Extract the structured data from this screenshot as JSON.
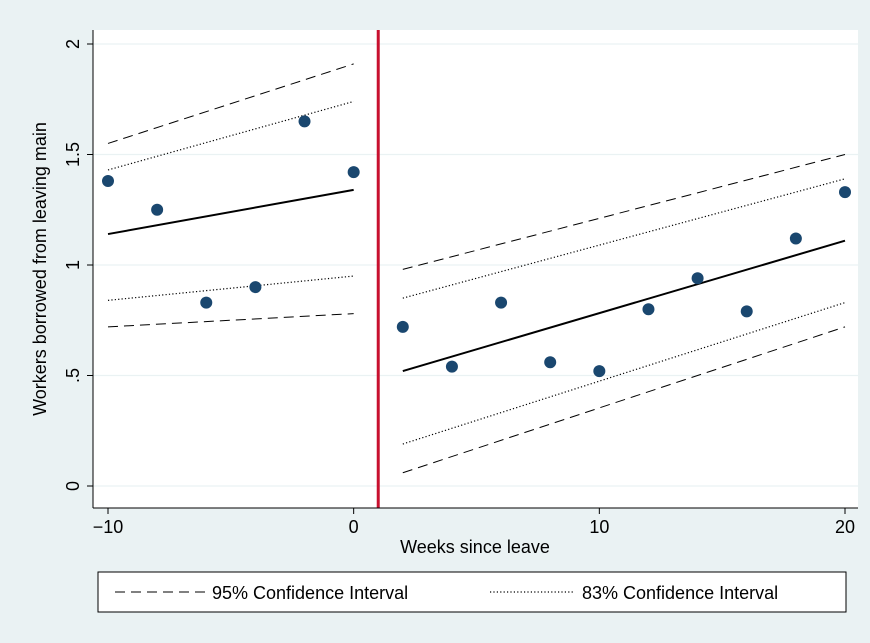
{
  "chart_data": {
    "type": "scatter",
    "xlabel": "Weeks since leave",
    "ylabel": "Workers borrowed from leaving main",
    "xlim": [
      -10,
      20
    ],
    "ylim": [
      0,
      2
    ],
    "x_ticks": [
      {
        "value": -10,
        "label": "−10"
      },
      {
        "value": 0,
        "label": "0"
      },
      {
        "value": 10,
        "label": "10"
      },
      {
        "value": 20,
        "label": "20"
      }
    ],
    "y_ticks": [
      {
        "value": 0,
        "label": "0"
      },
      {
        "value": 0.5,
        "label": ".5"
      },
      {
        "value": 1,
        "label": "1"
      },
      {
        "value": 1.5,
        "label": "1.5"
      },
      {
        "value": 2,
        "label": "2"
      }
    ],
    "grid": true,
    "vertical_line": {
      "x": 1,
      "color": "#c8102e"
    },
    "points": [
      {
        "x": -10,
        "y": 1.38
      },
      {
        "x": -8,
        "y": 1.25
      },
      {
        "x": -6,
        "y": 0.83
      },
      {
        "x": -4,
        "y": 0.9
      },
      {
        "x": -2,
        "y": 1.65
      },
      {
        "x": 0,
        "y": 1.42
      },
      {
        "x": 2,
        "y": 0.72
      },
      {
        "x": 4,
        "y": 0.54
      },
      {
        "x": 6,
        "y": 0.83
      },
      {
        "x": 8,
        "y": 0.56
      },
      {
        "x": 10,
        "y": 0.52
      },
      {
        "x": 12,
        "y": 0.8
      },
      {
        "x": 14,
        "y": 0.94
      },
      {
        "x": 16,
        "y": 0.79
      },
      {
        "x": 18,
        "y": 1.12
      },
      {
        "x": 20,
        "y": 1.33
      }
    ],
    "segments": [
      {
        "fit": [
          [
            -10,
            1.14
          ],
          [
            0,
            1.34
          ]
        ],
        "ci95_upper": [
          [
            -10,
            1.55
          ],
          [
            0,
            1.91
          ]
        ],
        "ci95_lower": [
          [
            -10,
            0.72
          ],
          [
            0,
            0.78
          ]
        ],
        "ci83_upper": [
          [
            -10,
            1.43
          ],
          [
            0,
            1.74
          ]
        ],
        "ci83_lower": [
          [
            -10,
            0.84
          ],
          [
            0,
            0.95
          ]
        ]
      },
      {
        "fit": [
          [
            2,
            0.52
          ],
          [
            20,
            1.11
          ]
        ],
        "ci95_upper": [
          [
            2,
            0.98
          ],
          [
            20,
            1.5
          ]
        ],
        "ci95_lower": [
          [
            2,
            0.06
          ],
          [
            20,
            0.72
          ]
        ],
        "ci83_upper": [
          [
            2,
            0.85
          ],
          [
            20,
            1.39
          ]
        ],
        "ci83_lower": [
          [
            2,
            0.19
          ],
          [
            20,
            0.83
          ]
        ]
      }
    ],
    "legend": {
      "position": "bottom",
      "entries": [
        {
          "label": "95% Confidence Interval",
          "style": "dashed"
        },
        {
          "label": "83% Confidence Interval",
          "style": "dotted"
        }
      ]
    },
    "colors": {
      "marker": "#1a476f",
      "fit": "#000000",
      "vline": "#c8102e",
      "background": "#eaf2f3",
      "plot_area": "#ffffff"
    }
  }
}
